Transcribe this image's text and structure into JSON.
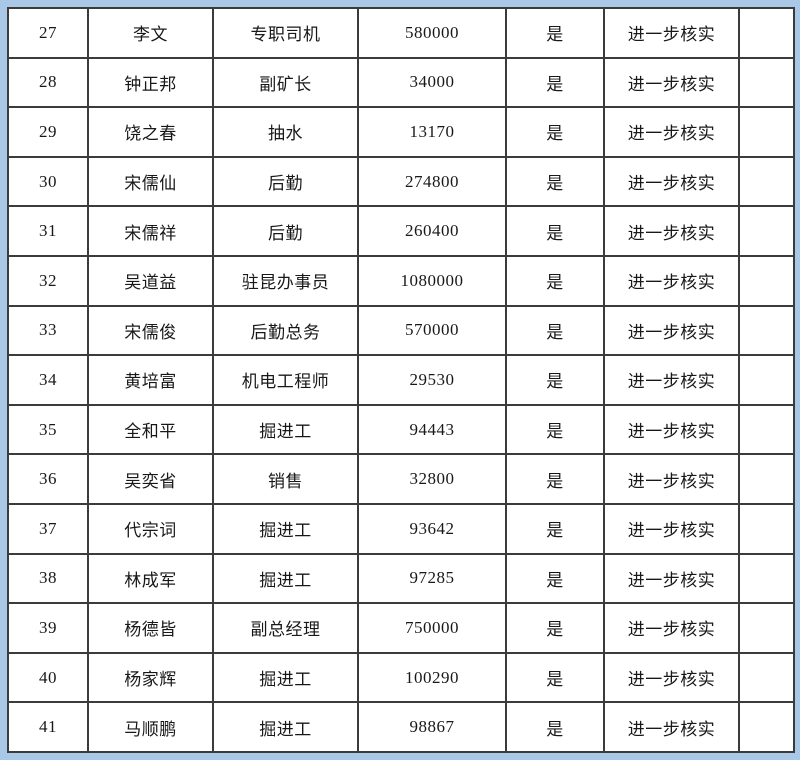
{
  "page": {
    "background_color": "#a9c8e8",
    "grid_color": "#3b3b3b",
    "table_background": "#ffffff"
  },
  "table": {
    "columns": [
      {
        "key": "index",
        "name": "row-number"
      },
      {
        "key": "name",
        "name": "employee-name"
      },
      {
        "key": "title",
        "name": "job-title"
      },
      {
        "key": "amount",
        "name": "amount"
      },
      {
        "key": "confirmed",
        "name": "confirmed-flag"
      },
      {
        "key": "action",
        "name": "review-action"
      },
      {
        "key": "remark",
        "name": "remark"
      }
    ],
    "rows": [
      {
        "index": "27",
        "name": "李文",
        "title": "专职司机",
        "amount": "580000",
        "confirmed": "是",
        "action": "进一步核实",
        "remark": ""
      },
      {
        "index": "28",
        "name": "钟正邦",
        "title": "副矿长",
        "amount": "34000",
        "confirmed": "是",
        "action": "进一步核实",
        "remark": ""
      },
      {
        "index": "29",
        "name": "饶之春",
        "title": "抽水",
        "amount": "13170",
        "confirmed": "是",
        "action": "进一步核实",
        "remark": ""
      },
      {
        "index": "30",
        "name": "宋儒仙",
        "title": "后勤",
        "amount": "274800",
        "confirmed": "是",
        "action": "进一步核实",
        "remark": ""
      },
      {
        "index": "31",
        "name": "宋儒祥",
        "title": "后勤",
        "amount": "260400",
        "confirmed": "是",
        "action": "进一步核实",
        "remark": ""
      },
      {
        "index": "32",
        "name": "吴道益",
        "title": "驻昆办事员",
        "amount": "1080000",
        "confirmed": "是",
        "action": "进一步核实",
        "remark": ""
      },
      {
        "index": "33",
        "name": "宋儒俊",
        "title": "后勤总务",
        "amount": "570000",
        "confirmed": "是",
        "action": "进一步核实",
        "remark": ""
      },
      {
        "index": "34",
        "name": "黄培富",
        "title": "机电工程师",
        "amount": "29530",
        "confirmed": "是",
        "action": "进一步核实",
        "remark": ""
      },
      {
        "index": "35",
        "name": "全和平",
        "title": "掘进工",
        "amount": "94443",
        "confirmed": "是",
        "action": "进一步核实",
        "remark": ""
      },
      {
        "index": "36",
        "name": "吴奕省",
        "title": "销售",
        "amount": "32800",
        "confirmed": "是",
        "action": "进一步核实",
        "remark": ""
      },
      {
        "index": "37",
        "name": "代宗词",
        "title": "掘进工",
        "amount": "93642",
        "confirmed": "是",
        "action": "进一步核实",
        "remark": ""
      },
      {
        "index": "38",
        "name": "林成军",
        "title": "掘进工",
        "amount": "97285",
        "confirmed": "是",
        "action": "进一步核实",
        "remark": ""
      },
      {
        "index": "39",
        "name": "杨德皆",
        "title": "副总经理",
        "amount": "750000",
        "confirmed": "是",
        "action": "进一步核实",
        "remark": ""
      },
      {
        "index": "40",
        "name": "杨家辉",
        "title": "掘进工",
        "amount": "100290",
        "confirmed": "是",
        "action": "进一步核实",
        "remark": ""
      },
      {
        "index": "41",
        "name": "马顺鹏",
        "title": "掘进工",
        "amount": "98867",
        "confirmed": "是",
        "action": "进一步核实",
        "remark": ""
      }
    ]
  }
}
